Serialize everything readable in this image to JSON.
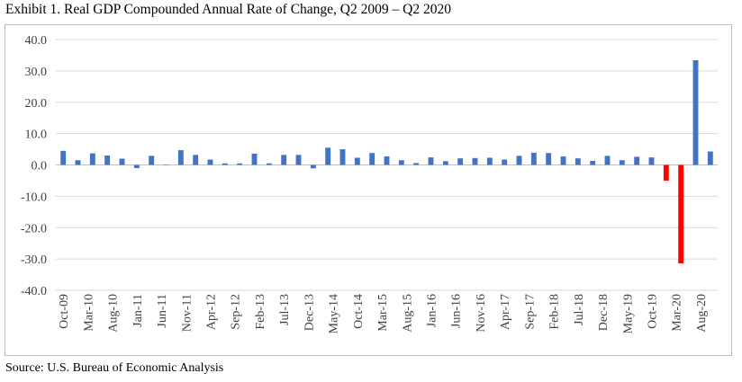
{
  "title": "Exhibit 1. Real GDP Compounded Annual Rate of Change, Q2 2009 – Q2 2020",
  "source": "Source: U.S. Bureau of Economic Analysis",
  "colors": {
    "bar": "#4472c4",
    "negative_highlight": "#ff0000",
    "grid": "#d9d9d9",
    "axis": "#bfbfbf"
  },
  "chart_data": {
    "type": "bar",
    "title": "Exhibit 1. Real GDP Compounded Annual Rate of Change, Q2 2009 – Q2 2020",
    "xlabel": "",
    "ylabel": "",
    "ylim": [
      -40,
      40
    ],
    "yticks": [
      40,
      30,
      20,
      10,
      0,
      -10,
      -20,
      -30,
      -40
    ],
    "ytick_labels": [
      "40.0",
      "30.0",
      "20.0",
      "10.0",
      "0.0",
      "-10.0",
      "-20.0",
      "-30.0",
      "-40.0"
    ],
    "grid": true,
    "legend": "none",
    "x_tick_labels": [
      "Oct-09",
      "Mar-10",
      "Aug-10",
      "Jan-11",
      "Jun-11",
      "Nov-11",
      "Apr-12",
      "Sep-12",
      "Feb-13",
      "Jul-13",
      "Dec-13",
      "May-14",
      "Oct-14",
      "Mar-15",
      "Aug-15",
      "Jan-16",
      "Jun-16",
      "Nov-16",
      "Apr-17",
      "Sep-17",
      "Feb-18",
      "Jul-18",
      "Dec-18",
      "May-19",
      "Oct-19",
      "Mar-20",
      "Aug-20"
    ],
    "values": [
      4.5,
      1.5,
      3.7,
      3.0,
      2.0,
      -1.0,
      2.9,
      0.0,
      4.7,
      3.2,
      1.7,
      0.5,
      0.5,
      3.6,
      0.5,
      3.2,
      3.2,
      -1.1,
      5.5,
      5.0,
      2.3,
      3.8,
      2.7,
      1.5,
      0.6,
      2.4,
      1.2,
      2.1,
      2.2,
      2.3,
      1.7,
      2.9,
      3.9,
      3.8,
      2.7,
      2.1,
      1.3,
      2.9,
      1.5,
      2.6,
      2.4,
      -5.0,
      -31.4,
      33.4,
      4.3
    ],
    "highlighted_indices": [
      41,
      42
    ]
  }
}
